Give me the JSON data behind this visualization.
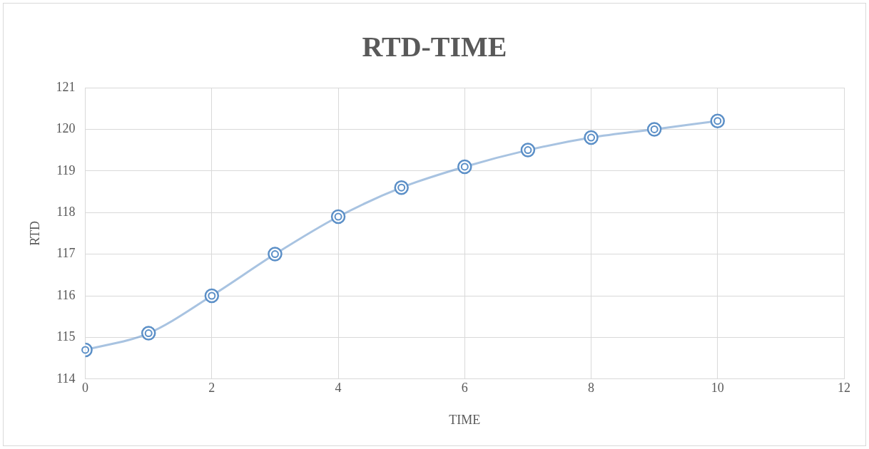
{
  "chart_data": {
    "type": "line",
    "title": "RTD-TIME",
    "xlabel": "TIME",
    "ylabel": "RTD",
    "x": [
      0,
      1,
      2,
      3,
      4,
      5,
      6,
      7,
      8,
      9,
      10
    ],
    "series": [
      {
        "color": "#5b8fc7",
        "values": [
          114.7,
          115.1,
          116,
          117,
          117.9,
          118.6,
          119.1,
          119.5,
          119.8,
          120,
          120.2
        ]
      }
    ],
    "xlim": [
      0,
      12
    ],
    "xticks": [
      0,
      2,
      4,
      6,
      8,
      10,
      12
    ],
    "ylim": [
      114,
      121
    ],
    "yticks": [
      114,
      115,
      116,
      117,
      118,
      119,
      120,
      121
    ],
    "grid": true,
    "legend": false,
    "marker": "circle",
    "line_style": "solid"
  }
}
